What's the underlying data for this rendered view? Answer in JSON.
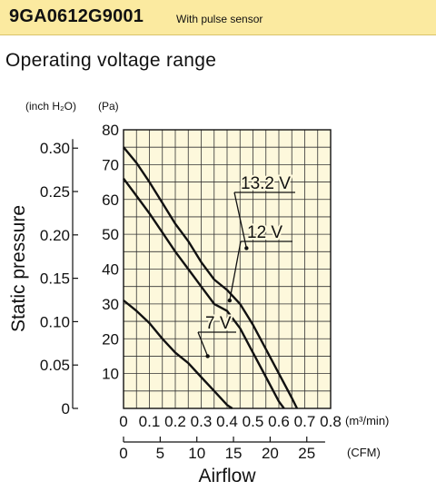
{
  "header": {
    "model": "9GA0612G9001",
    "subtitle": "With pulse sensor"
  },
  "section_title": "Operating voltage range",
  "colors": {
    "header_bg": "#fbeaa0",
    "plot_bg": "#fdf8dc",
    "line": "#111111"
  },
  "chart_data": {
    "type": "line",
    "title": "",
    "xlabel": "Airflow",
    "ylabel": "Static pressure",
    "x_unit_primary": "(m³/min)",
    "x_unit_secondary": "(CFM)",
    "y_unit_primary": "(Pa)",
    "y_unit_secondary": "(inch H₂O)",
    "xlim": [
      0,
      0.8
    ],
    "ylim": [
      0,
      80
    ],
    "grid": true,
    "x_ticks_primary": [
      "0",
      "0.1",
      "0.2",
      "0.3",
      "0.4",
      "0.5",
      "0.6",
      "0.7",
      "0.8"
    ],
    "x_ticks_secondary": [
      "0",
      "5",
      "10",
      "15",
      "20",
      "25"
    ],
    "y_ticks_pa": [
      "80",
      "70",
      "60",
      "50",
      "40",
      "30",
      "20",
      "10"
    ],
    "y_ticks_inch": [
      "0.30",
      "0.25",
      "0.20",
      "0.15",
      "0.10",
      "0.05",
      "0"
    ],
    "series": [
      {
        "name": "13.2 V",
        "x": [
          0,
          0.05,
          0.1,
          0.15,
          0.2,
          0.25,
          0.3,
          0.35,
          0.4,
          0.45,
          0.5,
          0.55,
          0.6,
          0.65,
          0.67
        ],
        "y": [
          75,
          70.5,
          65,
          59,
          53,
          48,
          42,
          37,
          34,
          30,
          24,
          17,
          10,
          3,
          0
        ]
      },
      {
        "name": "12 V",
        "x": [
          0,
          0.05,
          0.1,
          0.15,
          0.2,
          0.25,
          0.3,
          0.35,
          0.4,
          0.45,
          0.5,
          0.55,
          0.6,
          0.62
        ],
        "y": [
          66,
          61,
          56,
          50.5,
          45,
          40,
          35,
          30,
          28,
          23,
          16,
          9,
          2,
          0
        ]
      },
      {
        "name": "7 V",
        "x": [
          0,
          0.05,
          0.1,
          0.15,
          0.2,
          0.25,
          0.3,
          0.35,
          0.4,
          0.42
        ],
        "y": [
          31,
          28,
          24.5,
          20,
          16,
          13,
          9,
          5,
          1,
          0
        ]
      }
    ],
    "y_scale_factor": 249.1
  }
}
